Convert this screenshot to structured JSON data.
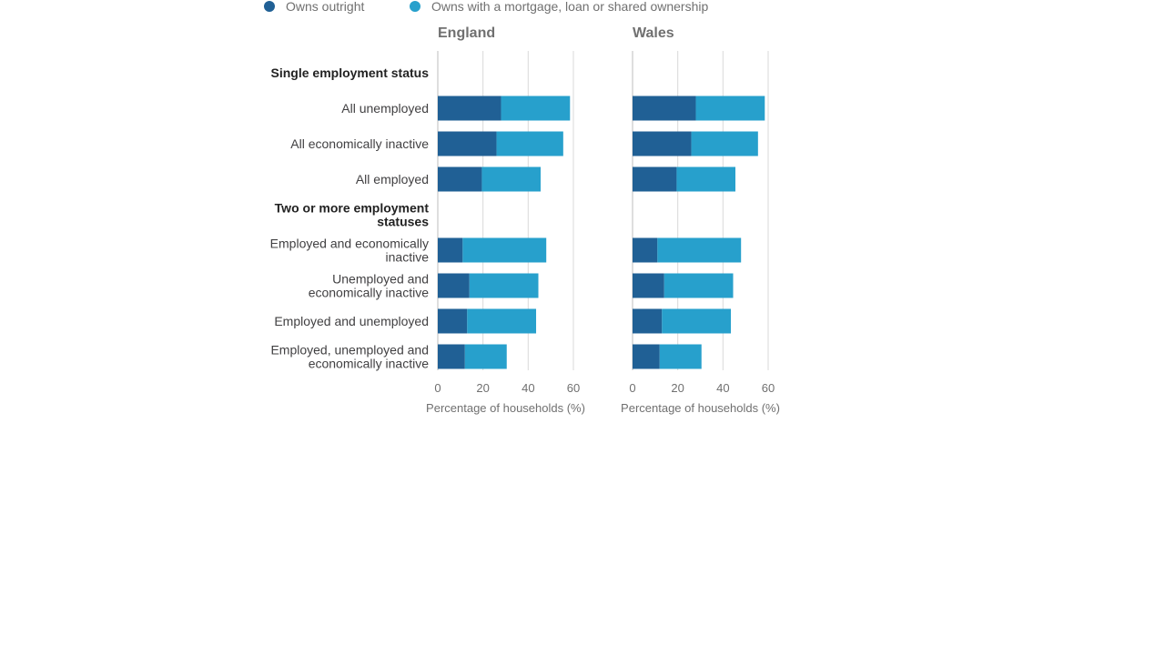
{
  "chart_data": {
    "type": "bar",
    "orientation": "horizontal",
    "stacked": true,
    "legend": {
      "placement": "top-left",
      "items": [
        {
          "name": "Owns outright",
          "color": "#206095"
        },
        {
          "name": "Owns with a mortgage, loan or shared ownership",
          "color": "#27a0cc"
        }
      ]
    },
    "xlim": [
      0,
      60
    ],
    "xticks": [
      "0",
      "20",
      "40",
      "60"
    ],
    "grid": true,
    "categories": [
      {
        "label": "Single employment status",
        "group": true
      },
      {
        "label": "All unemployed",
        "group": false
      },
      {
        "label": "All economically inactive",
        "group": false
      },
      {
        "label": "All employed",
        "group": false
      },
      {
        "label": "Two or more employment statuses",
        "group": true
      },
      {
        "label": "Employed and economically inactive",
        "group": false
      },
      {
        "label": "Unemployed and economically inactive",
        "group": false
      },
      {
        "label": "Employed and unemployed",
        "group": false
      },
      {
        "label": "Employed, unemployed and economically inactive",
        "group": false
      }
    ],
    "panels": [
      {
        "title": "England",
        "xlabel": "Percentage of households (%)",
        "series": [
          {
            "name": "Owns outright",
            "values": [
              null,
              28,
              26,
              19.5,
              null,
              11,
              14,
              13,
              12
            ]
          },
          {
            "name": "Owns with a mortgage, loan or shared ownership",
            "values": [
              null,
              30.5,
              29.5,
              26,
              null,
              37,
              30.5,
              30.5,
              18.5
            ]
          }
        ]
      },
      {
        "title": "Wales",
        "xlabel": "Percentage of households (%)",
        "series": [
          {
            "name": "Owns outright",
            "values": [
              null,
              28,
              26,
              19.5,
              null,
              11,
              14,
              13,
              12
            ]
          },
          {
            "name": "Owns with a mortgage, loan or shared ownership",
            "values": [
              null,
              30.5,
              29.5,
              26,
              null,
              37,
              30.5,
              30.5,
              18.5
            ]
          }
        ]
      }
    ]
  }
}
